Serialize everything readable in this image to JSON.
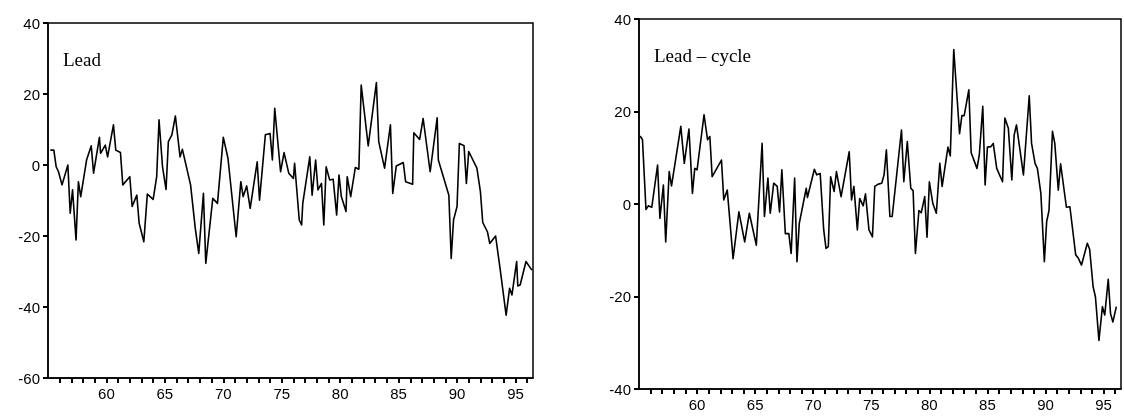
{
  "chart_data": [
    {
      "type": "line",
      "title": "Lead",
      "xlim": [
        55,
        96.5
      ],
      "ylim": [
        -60,
        40
      ],
      "yticks": [
        -60,
        -40,
        -20,
        0,
        20,
        40
      ],
      "xticks": [
        {
          "value": 56,
          "label": null
        },
        {
          "value": 57,
          "label": null
        },
        {
          "value": 58,
          "label": null
        },
        {
          "value": 59,
          "label": null
        },
        {
          "value": 60,
          "label": "60"
        },
        {
          "value": 61,
          "label": null
        },
        {
          "value": 62,
          "label": null
        },
        {
          "value": 63,
          "label": null
        },
        {
          "value": 64,
          "label": null
        },
        {
          "value": 65,
          "label": "65"
        },
        {
          "value": 66,
          "label": null
        },
        {
          "value": 67,
          "label": null
        },
        {
          "value": 68,
          "label": null
        },
        {
          "value": 69,
          "label": null
        },
        {
          "value": 70,
          "label": "70"
        },
        {
          "value": 71,
          "label": null
        },
        {
          "value": 72,
          "label": null
        },
        {
          "value": 73,
          "label": null
        },
        {
          "value": 74,
          "label": null
        },
        {
          "value": 75,
          "label": "75"
        },
        {
          "value": 76,
          "label": null
        },
        {
          "value": 77,
          "label": null
        },
        {
          "value": 78,
          "label": null
        },
        {
          "value": 79,
          "label": null
        },
        {
          "value": 80,
          "label": "80"
        },
        {
          "value": 81,
          "label": null
        },
        {
          "value": 82,
          "label": null
        },
        {
          "value": 83,
          "label": null
        },
        {
          "value": 84,
          "label": null
        },
        {
          "value": 85,
          "label": "85"
        },
        {
          "value": 86,
          "label": null
        },
        {
          "value": 87,
          "label": null
        },
        {
          "value": 88,
          "label": null
        },
        {
          "value": 89,
          "label": null
        },
        {
          "value": 90,
          "label": "90"
        },
        {
          "value": 91,
          "label": null
        },
        {
          "value": 92,
          "label": null
        },
        {
          "value": 93,
          "label": null
        },
        {
          "value": 94,
          "label": null
        },
        {
          "value": 95,
          "label": "95"
        },
        {
          "value": 96,
          "label": null
        }
      ],
      "grid": false,
      "marker": "none",
      "line_style": "solid",
      "x": [
        55.2,
        55.5,
        55.7,
        55.9,
        56.2,
        56.7,
        56.9,
        57.1,
        57.4,
        57.6,
        57.8,
        58.3,
        58.7,
        58.9,
        59.4,
        59.5,
        59.9,
        60.1,
        60.6,
        60.8,
        61.2,
        61.4,
        62.0,
        62.2,
        62.6,
        62.8,
        63.2,
        63.5,
        64.0,
        64.3,
        64.5,
        64.8,
        65.1,
        65.3,
        65.6,
        65.9,
        66.3,
        66.5,
        67.2,
        67.6,
        67.9,
        68.3,
        68.5,
        69.1,
        69.5,
        70.0,
        70.4,
        71.1,
        71.5,
        71.7,
        72.0,
        72.3,
        72.9,
        73.1,
        73.6,
        74.0,
        74.2,
        74.4,
        74.9,
        75.2,
        75.6,
        76.0,
        76.1,
        76.5,
        76.7,
        76.8,
        77.4,
        77.6,
        77.9,
        78.1,
        78.4,
        78.6,
        78.8,
        79.1,
        79.4,
        79.7,
        79.9,
        80.1,
        80.5,
        80.6,
        80.9,
        81.3,
        81.6,
        81.8,
        82.4,
        83.1,
        83.3,
        83.8,
        84.3,
        84.5,
        84.8,
        85.4,
        85.6,
        86.2,
        86.3,
        86.8,
        87.1,
        87.7,
        88.3,
        88.4,
        89.3,
        89.5,
        89.7,
        90.0,
        90.2,
        90.6,
        90.8,
        91.0,
        91.7,
        92.0,
        92.2,
        92.6,
        92.8,
        93.3,
        93.7,
        94.2,
        94.5,
        94.7,
        95.1,
        95.2,
        95.4,
        95.9,
        96.4
      ],
      "series": [
        {
          "color": "#000000",
          "values": [
            4.2,
            4.2,
            -0.5,
            -1.9,
            -5.6,
            0,
            -13.6,
            -7.0,
            -21.1,
            -4.7,
            -8.9,
            1.4,
            5.4,
            -2.3,
            7.8,
            3.3,
            5.6,
            2.3,
            11.3,
            4.2,
            3.5,
            -5.6,
            -3.3,
            -11.7,
            -8.5,
            -16.4,
            -21.6,
            -8.2,
            -9.7,
            -3.3,
            12.7,
            -0.5,
            -6.9,
            6.6,
            8.5,
            13.8,
            2.3,
            4.4,
            -5.6,
            -17.8,
            -24.9,
            -8.0,
            -27.7,
            -9.4,
            -10.8,
            7.8,
            1.9,
            -20.2,
            -4.7,
            -8.9,
            -5.9,
            -12.2,
            0.9,
            -9.9,
            8.5,
            8.9,
            1.4,
            16.0,
            -1.9,
            3.5,
            -2.3,
            -3.8,
            0.5,
            -15.5,
            -16.9,
            -10.8,
            2.3,
            -8.5,
            1.4,
            -7.0,
            -5.2,
            -16.9,
            -0.5,
            -4.2,
            -4.0,
            -14.1,
            -2.8,
            -8.9,
            -13.1,
            -3.3,
            -8.9,
            -0.7,
            -1.2,
            22.5,
            5.4,
            23.2,
            6.6,
            -0.9,
            11.3,
            -8.0,
            -0.3,
            0.7,
            -4.7,
            -5.4,
            9.1,
            7.2,
            13.1,
            -1.9,
            13.3,
            1.4,
            -8.5,
            -26.3,
            -15.5,
            -11.7,
            6.1,
            5.4,
            -5.2,
            3.8,
            -0.9,
            -7.5,
            -16.2,
            -18.8,
            -22.1,
            -20.0,
            -29.6,
            -42.3,
            -34.7,
            -36.6,
            -27.2,
            -34.1,
            -33.8,
            -27.2,
            -29.6
          ]
        }
      ]
    },
    {
      "type": "line",
      "title": "Lead – cycle",
      "xlim": [
        55,
        96.5
      ],
      "ylim": [
        -40,
        40
      ],
      "yticks": [
        -40,
        -20,
        0,
        20,
        40
      ],
      "xticks": [
        {
          "value": 56,
          "label": null
        },
        {
          "value": 57,
          "label": null
        },
        {
          "value": 58,
          "label": null
        },
        {
          "value": 59,
          "label": null
        },
        {
          "value": 60,
          "label": "60"
        },
        {
          "value": 61,
          "label": null
        },
        {
          "value": 62,
          "label": null
        },
        {
          "value": 63,
          "label": null
        },
        {
          "value": 64,
          "label": null
        },
        {
          "value": 65,
          "label": "65"
        },
        {
          "value": 66,
          "label": null
        },
        {
          "value": 67,
          "label": null
        },
        {
          "value": 68,
          "label": null
        },
        {
          "value": 69,
          "label": null
        },
        {
          "value": 70,
          "label": "70"
        },
        {
          "value": 71,
          "label": null
        },
        {
          "value": 72,
          "label": null
        },
        {
          "value": 73,
          "label": null
        },
        {
          "value": 74,
          "label": null
        },
        {
          "value": 75,
          "label": "75"
        },
        {
          "value": 76,
          "label": null
        },
        {
          "value": 77,
          "label": null
        },
        {
          "value": 78,
          "label": null
        },
        {
          "value": 79,
          "label": null
        },
        {
          "value": 80,
          "label": "80"
        },
        {
          "value": 81,
          "label": null
        },
        {
          "value": 82,
          "label": null
        },
        {
          "value": 83,
          "label": null
        },
        {
          "value": 84,
          "label": null
        },
        {
          "value": 85,
          "label": "85"
        },
        {
          "value": 86,
          "label": null
        },
        {
          "value": 87,
          "label": null
        },
        {
          "value": 88,
          "label": null
        },
        {
          "value": 89,
          "label": null
        },
        {
          "value": 90,
          "label": "90"
        },
        {
          "value": 91,
          "label": null
        },
        {
          "value": 92,
          "label": null
        },
        {
          "value": 93,
          "label": null
        },
        {
          "value": 94,
          "label": null
        },
        {
          "value": 95,
          "label": "95"
        },
        {
          "value": 96,
          "label": null
        }
      ],
      "grid": false,
      "marker": "none",
      "line_style": "solid",
      "x": [
        55.1,
        55.3,
        55.6,
        55.8,
        56.1,
        56.6,
        56.8,
        57.1,
        57.3,
        57.6,
        57.8,
        58.6,
        58.9,
        59.3,
        59.6,
        59.8,
        60.0,
        60.6,
        60.9,
        61.1,
        61.3,
        62.1,
        62.3,
        62.6,
        63.1,
        63.6,
        64.1,
        64.5,
        65.1,
        65.6,
        65.8,
        66.1,
        66.3,
        66.6,
        66.9,
        67.1,
        67.3,
        67.6,
        67.9,
        68.1,
        68.4,
        68.6,
        68.8,
        69.4,
        69.5,
        70.1,
        70.3,
        70.6,
        70.9,
        71.1,
        71.3,
        71.5,
        71.8,
        72.0,
        72.4,
        73.1,
        73.3,
        73.5,
        73.8,
        74.0,
        74.3,
        74.5,
        74.8,
        75.1,
        75.3,
        75.6,
        75.9,
        76.1,
        76.3,
        76.6,
        76.8,
        77.6,
        77.8,
        78.1,
        78.4,
        78.6,
        78.8,
        79.1,
        79.3,
        79.6,
        79.8,
        80.0,
        80.3,
        80.6,
        80.9,
        81.1,
        81.6,
        81.8,
        82.1,
        82.6,
        82.8,
        83.0,
        83.4,
        83.6,
        84.1,
        84.3,
        84.6,
        84.8,
        85.0,
        85.3,
        85.5,
        85.8,
        86.3,
        86.5,
        86.8,
        87.1,
        87.3,
        87.5,
        88.1,
        88.6,
        88.8,
        89.1,
        89.3,
        89.6,
        89.9,
        90.1,
        90.3,
        90.6,
        90.8,
        91.1,
        91.3,
        91.8,
        92.1,
        92.6,
        92.8,
        93.1,
        93.6,
        93.8,
        94.1,
        94.3,
        94.6,
        94.9,
        95.1,
        95.4,
        95.6,
        95.8,
        96.1
      ],
      "series": [
        {
          "color": "#000000",
          "values": [
            14.7,
            13.9,
            -1.2,
            -0.4,
            -0.7,
            8.4,
            -3.1,
            4.1,
            -8.2,
            7.0,
            3.9,
            16.8,
            8.8,
            16.2,
            2.3,
            7.7,
            7.4,
            19.3,
            13.9,
            14.6,
            5.9,
            9.5,
            0.9,
            3.0,
            -11.8,
            -1.7,
            -8.2,
            -2.0,
            -8.9,
            13.1,
            -2.7,
            5.6,
            -2.0,
            4.5,
            3.8,
            -1.7,
            7.4,
            -6.4,
            -6.4,
            -10.7,
            5.6,
            -12.5,
            -4.2,
            3.4,
            1.4,
            7.5,
            6.3,
            6.6,
            -5.5,
            -9.6,
            -9.2,
            5.9,
            2.7,
            7.0,
            1.6,
            11.3,
            0.9,
            3.8,
            -5.6,
            1.2,
            -0.4,
            2.2,
            -5.6,
            -7.1,
            3.8,
            4.3,
            4.5,
            6.3,
            11.7,
            -2.7,
            -2.7,
            16.0,
            4.8,
            13.5,
            3.4,
            2.9,
            -10.7,
            -1.4,
            -1.9,
            1.6,
            -7.2,
            4.8,
            0.1,
            -2.0,
            8.8,
            3.8,
            12.3,
            10.4,
            33.4,
            15.2,
            19.1,
            19.1,
            24.7,
            11.1,
            7.7,
            10.6,
            21.1,
            4.1,
            12.3,
            12.4,
            13.1,
            7.7,
            4.8,
            18.6,
            16.4,
            5.2,
            14.9,
            17.1,
            6.3,
            23.4,
            13.1,
            8.8,
            7.7,
            2.3,
            -12.5,
            -3.8,
            -1.4,
            15.7,
            13.1,
            3.0,
            8.7,
            -0.7,
            -0.6,
            -11.0,
            -11.6,
            -13.2,
            -8.5,
            -9.8,
            -17.9,
            -20.1,
            -29.5,
            -22.2,
            -24.0,
            -16.3,
            -23.7,
            -25.5,
            -22.2
          ]
        }
      ]
    }
  ]
}
